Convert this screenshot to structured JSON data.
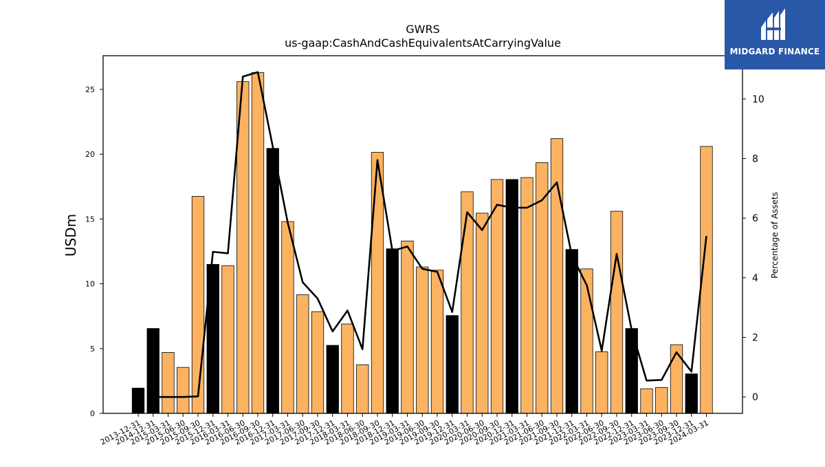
{
  "logo": {
    "text": "MIDGARD FINANCE"
  },
  "chart_data": {
    "type": "bar",
    "title": "GWRS",
    "subtitle": "us-gaap:CashAndCashEquivalentsAtCarryingValue",
    "ylabel": "USDm",
    "y2label": "Percentage of Assets",
    "ylim": [
      0,
      27.6
    ],
    "y2lim": [
      -0.55,
      11.45
    ],
    "yticks": [
      0,
      5,
      10,
      15,
      20,
      25
    ],
    "y2ticks": [
      0,
      2,
      4,
      6,
      8,
      10
    ],
    "colors": {
      "annual_bar": "#000000",
      "quarter_bar": "#fbb361",
      "line": "#000000"
    },
    "categories": [
      "2013-12-31",
      "2014-12-31",
      "2015-03-31",
      "2015-06-30",
      "2015-09-30",
      "2015-12-31",
      "2016-03-31",
      "2016-06-30",
      "2016-09-30",
      "2016-12-31",
      "2017-03-31",
      "2017-06-30",
      "2017-09-30",
      "2017-12-31",
      "2018-03-31",
      "2018-06-30",
      "2018-09-30",
      "2018-12-31",
      "2019-03-31",
      "2019-06-30",
      "2019-09-30",
      "2019-12-31",
      "2020-03-31",
      "2020-06-30",
      "2020-09-30",
      "2020-12-31",
      "2021-03-31",
      "2021-06-30",
      "2021-09-30",
      "2021-12-31",
      "2022-03-31",
      "2022-06-30",
      "2022-09-30",
      "2022-12-31",
      "2023-03-31",
      "2023-06-30",
      "2023-09-30",
      "2023-12-31",
      "2024-03-31"
    ],
    "series": [
      {
        "type": "bar",
        "values": [
          1.95,
          6.55,
          4.7,
          3.55,
          16.75,
          11.5,
          11.4,
          25.6,
          26.3,
          20.45,
          14.8,
          9.15,
          7.85,
          5.25,
          6.9,
          3.75,
          20.15,
          12.7,
          13.3,
          11.3,
          11.05,
          7.55,
          17.1,
          15.45,
          18.05,
          18.05,
          18.2,
          19.35,
          21.2,
          12.65,
          11.15,
          4.75,
          15.6,
          6.55,
          1.9,
          2.0,
          5.3,
          3.05,
          20.6
        ]
      },
      {
        "type": "line",
        "axis": "right",
        "values": [
          null,
          0.0,
          0.0,
          0.0,
          0.02,
          4.87,
          4.82,
          10.75,
          10.9,
          8.4,
          5.85,
          3.85,
          3.3,
          2.2,
          2.9,
          1.6,
          7.95,
          4.9,
          5.05,
          4.3,
          4.2,
          2.85,
          6.2,
          5.6,
          6.45,
          6.35,
          6.35,
          6.6,
          7.2,
          4.75,
          3.75,
          1.55,
          4.8,
          2.25,
          0.55,
          0.57,
          1.5,
          0.85,
          5.4
        ]
      }
    ],
    "annual_flags": [
      true,
      true,
      false,
      false,
      false,
      true,
      false,
      false,
      false,
      true,
      false,
      false,
      false,
      true,
      false,
      false,
      false,
      true,
      false,
      false,
      false,
      true,
      false,
      false,
      false,
      true,
      false,
      false,
      false,
      true,
      false,
      false,
      false,
      true,
      false,
      false,
      false,
      true,
      false
    ]
  }
}
